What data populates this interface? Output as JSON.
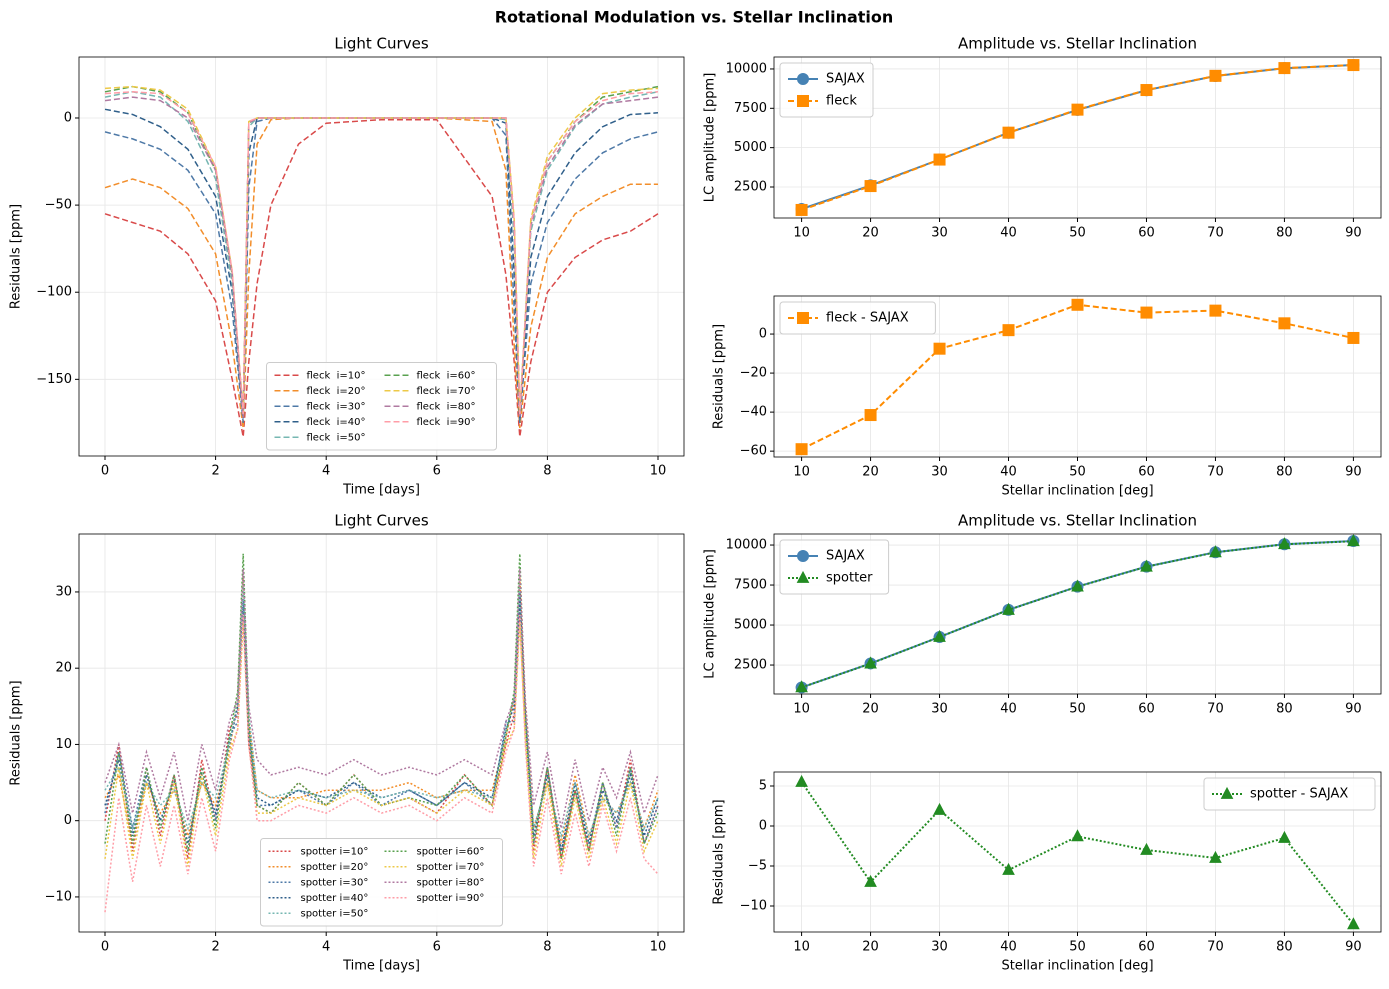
{
  "title": "Rotational Modulation vs. Stellar Inclination",
  "chart_data": [
    {
      "type": "line",
      "title": "Light Curves",
      "xlabel": "Time [days]",
      "ylabel": "Residuals [ppm]",
      "grid": true,
      "legend": "lower center",
      "xlim": [
        -0.47,
        10.47
      ],
      "ylim": [
        -194,
        35
      ],
      "xticks": [
        0,
        2,
        4,
        6,
        8,
        10
      ],
      "yticks": [
        {
          "value": -150,
          "label": "−150"
        },
        {
          "value": -100,
          "label": "−100"
        },
        {
          "value": -50,
          "label": "−50"
        },
        0
      ],
      "x": [
        0,
        0.5,
        1,
        1.5,
        2,
        2.3,
        2.5,
        2.6,
        2.75,
        3,
        3.5,
        4,
        5,
        6,
        7,
        7.25,
        7.4,
        7.5,
        7.7,
        8,
        8.5,
        9,
        9.5,
        10
      ],
      "series": [
        {
          "name": "fleck  i=10°",
          "color": "#d94a4a",
          "dash": "dashed",
          "values": [
            -55,
            -60,
            -65,
            -78,
            -105,
            -150,
            -183,
            -140,
            -95,
            -50,
            -15,
            -3,
            -1,
            -1,
            -45,
            -90,
            -140,
            -183,
            -140,
            -100,
            -80,
            -70,
            -65,
            -55
          ]
        },
        {
          "name": "fleck  i=20°",
          "color": "#f28e2b",
          "dash": "dashed",
          "values": [
            -40,
            -35,
            -40,
            -52,
            -78,
            -130,
            -178,
            -90,
            -15,
            -1,
            0,
            0,
            0,
            0,
            -2,
            -30,
            -130,
            -178,
            -120,
            -80,
            -55,
            -45,
            -38,
            -38
          ]
        },
        {
          "name": "fleck  i=30°",
          "color": "#4e79a7",
          "dash": "dashed",
          "values": [
            -8,
            -12,
            -18,
            -30,
            -55,
            -110,
            -175,
            -40,
            -2,
            0,
            0,
            0,
            0,
            0,
            0,
            -10,
            -110,
            -175,
            -95,
            -60,
            -35,
            -20,
            -12,
            -8
          ]
        },
        {
          "name": "fleck  i=40°",
          "color": "#2f5f8a",
          "dash": "dashed",
          "values": [
            5,
            2,
            -5,
            -18,
            -45,
            -100,
            -172,
            -20,
            0,
            0,
            0,
            0,
            0,
            0,
            0,
            -3,
            -90,
            -172,
            -80,
            -45,
            -20,
            -5,
            2,
            3
          ]
        },
        {
          "name": "fleck  i=50°",
          "color": "#76b7b2",
          "dash": "dashed",
          "values": [
            12,
            15,
            12,
            -2,
            -35,
            -95,
            -170,
            -5,
            0,
            0,
            0,
            0,
            0,
            0,
            0,
            -1,
            -70,
            -170,
            -65,
            -30,
            -5,
            8,
            12,
            15
          ]
        },
        {
          "name": "fleck  i=60°",
          "color": "#59a14f",
          "dash": "dashed",
          "values": [
            15,
            18,
            15,
            3,
            -30,
            -90,
            -170,
            -3,
            0,
            0,
            0,
            0,
            0,
            0,
            0,
            0,
            -60,
            -170,
            -60,
            -25,
            -2,
            12,
            15,
            18
          ]
        },
        {
          "name": "fleck  i=70°",
          "color": "#edc948",
          "dash": "dashed",
          "values": [
            17,
            18,
            16,
            5,
            -28,
            -88,
            -170,
            -2,
            0,
            0,
            0,
            0,
            0,
            0,
            0,
            0,
            -58,
            -170,
            -58,
            -22,
            0,
            14,
            16,
            17
          ]
        },
        {
          "name": "fleck  i=80°",
          "color": "#b07aa1",
          "dash": "dashed",
          "values": [
            10,
            12,
            10,
            0,
            -30,
            -90,
            -172,
            -3,
            0,
            0,
            0,
            0,
            0,
            0,
            0,
            0,
            -62,
            -172,
            -62,
            -28,
            -4,
            8,
            10,
            12
          ]
        },
        {
          "name": "fleck  i=90°",
          "color": "#ff9da7",
          "dash": "dashed",
          "values": [
            14,
            15,
            14,
            3,
            -28,
            -88,
            -170,
            -2,
            0,
            0,
            0,
            0,
            0,
            0,
            0,
            0,
            -60,
            -170,
            -60,
            -25,
            -2,
            10,
            14,
            15
          ]
        }
      ]
    },
    {
      "type": "line",
      "title": "Amplitude vs. Stellar Inclination",
      "ylabel": "LC amplitude [ppm]",
      "grid": true,
      "legend": "upper left",
      "xlim": [
        6,
        94
      ],
      "ylim": [
        530,
        10760
      ],
      "xticks": [
        10,
        20,
        30,
        40,
        50,
        60,
        70,
        80,
        90
      ],
      "yticks": [
        2500,
        5000,
        7500,
        10000
      ],
      "x": [
        10,
        20,
        30,
        40,
        50,
        60,
        70,
        80,
        90
      ],
      "series": [
        {
          "name": "SAJAX",
          "color": "#4682b4",
          "dash": "solid",
          "marker": "circle",
          "values": [
            1100,
            2600,
            4250,
            5950,
            7400,
            8650,
            9550,
            10050,
            10250
          ]
        },
        {
          "name": "fleck",
          "color": "#ff8c00",
          "dash": "dashed",
          "marker": "square",
          "values": [
            1041,
            2559,
            4243,
            5952,
            7415,
            8661,
            9562,
            10056,
            10248
          ]
        }
      ]
    },
    {
      "type": "line",
      "xlabel": "Stellar inclination [deg]",
      "ylabel": "Residuals [ppm]",
      "grid": true,
      "legend": "upper left",
      "xlim": [
        6,
        94
      ],
      "ylim": [
        -63,
        19.5
      ],
      "xticks": [
        10,
        20,
        30,
        40,
        50,
        60,
        70,
        80,
        90
      ],
      "yticks": [
        {
          "value": -60,
          "label": "−60"
        },
        {
          "value": -40,
          "label": "−40"
        },
        {
          "value": -20,
          "label": "−20"
        },
        0
      ],
      "x": [
        10,
        20,
        30,
        40,
        50,
        60,
        70,
        80,
        90
      ],
      "series": [
        {
          "name": "fleck - SAJAX",
          "color": "#ff8c00",
          "dash": "dashed",
          "marker": "square",
          "values": [
            -59,
            -41.5,
            -7.5,
            2,
            15,
            11,
            12,
            5.5,
            -2
          ]
        }
      ]
    },
    {
      "type": "line",
      "title": "Light Curves",
      "xlabel": "Time [days]",
      "ylabel": "Residuals [ppm]",
      "grid": true,
      "legend": "lower center",
      "xlim": [
        -0.47,
        10.47
      ],
      "ylim": [
        -14.6,
        37.6
      ],
      "xticks": [
        0,
        2,
        4,
        6,
        8,
        10
      ],
      "yticks": [
        {
          "value": -10,
          "label": "−10"
        },
        0,
        10,
        20,
        30
      ],
      "x": [
        0,
        0.25,
        0.5,
        0.75,
        1,
        1.25,
        1.5,
        1.75,
        2,
        2.25,
        2.4,
        2.5,
        2.6,
        2.75,
        3,
        3.5,
        4,
        4.5,
        5,
        5.5,
        6,
        6.5,
        7,
        7.25,
        7.4,
        7.5,
        7.6,
        7.75,
        8,
        8.25,
        8.5,
        8.75,
        9,
        9.25,
        9.5,
        9.75,
        10
      ],
      "series": [
        {
          "name": "spotter i=10°",
          "color": "#d94a4a",
          "dash": "dotted",
          "values": [
            0,
            10,
            -4,
            7,
            -2,
            6,
            -5,
            8,
            0,
            12,
            14,
            28,
            10,
            2,
            1,
            5,
            2,
            6,
            2,
            3,
            1,
            6,
            2,
            10,
            14,
            28,
            12,
            -4,
            7,
            -5,
            4,
            -4,
            5,
            -1,
            8,
            -3,
            2
          ]
        },
        {
          "name": "spotter i=20°",
          "color": "#f28e2b",
          "dash": "dotted",
          "values": [
            3,
            6,
            -3,
            5,
            1,
            4,
            -2,
            5,
            2,
            9,
            16,
            32,
            13,
            4,
            3,
            3,
            4,
            4,
            4,
            5,
            3,
            4,
            4,
            11,
            16,
            32,
            15,
            -1,
            5,
            -3,
            6,
            -2,
            3,
            1,
            5,
            -1,
            4
          ]
        },
        {
          "name": "spotter i=30°",
          "color": "#4e79a7",
          "dash": "dotted",
          "values": [
            1,
            9,
            -1,
            7,
            -1,
            6,
            -4,
            7,
            0,
            11,
            13,
            29,
            11,
            2,
            2,
            4,
            2,
            5,
            2,
            4,
            2,
            5,
            2,
            13,
            13,
            29,
            12,
            -3,
            7,
            -4,
            4,
            -3,
            5,
            -1,
            7,
            -3,
            2
          ]
        },
        {
          "name": "spotter i=40°",
          "color": "#2f5f8a",
          "dash": "dotted",
          "values": [
            2,
            8,
            -2,
            6,
            0,
            5,
            -3,
            6,
            1,
            10,
            15,
            30,
            12,
            3,
            2,
            4,
            3,
            5,
            3,
            4,
            2,
            5,
            3,
            12,
            15,
            30,
            14,
            -2,
            6,
            -4,
            5,
            -3,
            4,
            0,
            6,
            -2,
            3
          ]
        },
        {
          "name": "spotter i=50°",
          "color": "#76b7b2",
          "dash": "dotted",
          "values": [
            4,
            7,
            -1,
            5,
            2,
            4,
            -1,
            5,
            3,
            10,
            16,
            31,
            14,
            4,
            3,
            4,
            3,
            4,
            3,
            4,
            3,
            4,
            3,
            12,
            16,
            31,
            15,
            -1,
            5,
            -2,
            5,
            -2,
            3,
            1,
            5,
            -1,
            3
          ]
        },
        {
          "name": "spotter i=60°",
          "color": "#59a14f",
          "dash": "dotted",
          "values": [
            -3,
            9,
            -3,
            7,
            -1,
            6,
            -4,
            7,
            -1,
            11,
            17,
            35,
            12,
            2,
            1,
            5,
            2,
            6,
            2,
            3,
            2,
            6,
            2,
            11,
            17,
            35,
            13,
            -3,
            7,
            -5,
            4,
            -4,
            5,
            -2,
            7,
            -3,
            1
          ]
        },
        {
          "name": "spotter i=70°",
          "color": "#edc948",
          "dash": "dotted",
          "values": [
            -5,
            7,
            -5,
            5,
            -3,
            5,
            -6,
            6,
            -2,
            9,
            12,
            26,
            10,
            1,
            1,
            3,
            2,
            4,
            2,
            3,
            1,
            4,
            2,
            10,
            12,
            26,
            11,
            -5,
            5,
            -6,
            3,
            -5,
            3,
            -3,
            5,
            -4,
            0
          ]
        },
        {
          "name": "spotter i=80°",
          "color": "#b07aa1",
          "dash": "dotted",
          "values": [
            5,
            10,
            1,
            9,
            3,
            9,
            0,
            10,
            4,
            13,
            16,
            33,
            15,
            8,
            6,
            7,
            6,
            8,
            6,
            7,
            6,
            8,
            6,
            13,
            16,
            33,
            16,
            2,
            9,
            -1,
            8,
            0,
            7,
            3,
            9,
            1,
            6
          ]
        },
        {
          "name": "spotter i=90°",
          "color": "#ff9da7",
          "dash": "dotted",
          "values": [
            -12,
            3,
            -8,
            2,
            -6,
            2,
            -7,
            3,
            -4,
            8,
            12,
            27,
            10,
            0,
            0,
            2,
            1,
            3,
            1,
            2,
            0,
            3,
            1,
            9,
            12,
            27,
            10,
            -6,
            3,
            -7,
            1,
            -6,
            2,
            -4,
            3,
            -5,
            -7
          ]
        }
      ]
    },
    {
      "type": "line",
      "title": "Amplitude vs. Stellar Inclination",
      "ylabel": "LC amplitude [ppm]",
      "grid": true,
      "legend": "upper left",
      "xlim": [
        6,
        94
      ],
      "ylim": [
        690,
        10690
      ],
      "xticks": [
        10,
        20,
        30,
        40,
        50,
        60,
        70,
        80,
        90
      ],
      "yticks": [
        2500,
        5000,
        7500,
        10000
      ],
      "x": [
        10,
        20,
        30,
        40,
        50,
        60,
        70,
        80,
        90
      ],
      "series": [
        {
          "name": "SAJAX",
          "color": "#4682b4",
          "dash": "solid",
          "marker": "circle",
          "values": [
            1100,
            2600,
            4250,
            5950,
            7400,
            8650,
            9550,
            10050,
            10250
          ]
        },
        {
          "name": "spotter",
          "color": "#228b22",
          "dash": "dotted",
          "marker": "triangle",
          "values": [
            1105,
            2593,
            4252,
            5944,
            7399,
            8647,
            9546,
            10048,
            10238
          ]
        }
      ]
    },
    {
      "type": "line",
      "xlabel": "Stellar inclination [deg]",
      "ylabel": "Residuals [ppm]",
      "grid": true,
      "legend": "upper right",
      "xlim": [
        6,
        94
      ],
      "ylim": [
        -13.25,
        6.75
      ],
      "xticks": [
        10,
        20,
        30,
        40,
        50,
        60,
        70,
        80,
        90
      ],
      "yticks": [
        {
          "value": -10,
          "label": "−10"
        },
        {
          "value": -5,
          "label": "−5"
        },
        0,
        5
      ],
      "x": [
        10,
        20,
        30,
        40,
        50,
        60,
        70,
        80,
        90
      ],
      "series": [
        {
          "name": "spotter - SAJAX",
          "color": "#228b22",
          "dash": "dotted",
          "marker": "triangle",
          "values": [
            5.5,
            -7,
            2,
            -5.5,
            -1.3,
            -3,
            -4,
            -1.5,
            -12.3
          ]
        }
      ]
    }
  ]
}
